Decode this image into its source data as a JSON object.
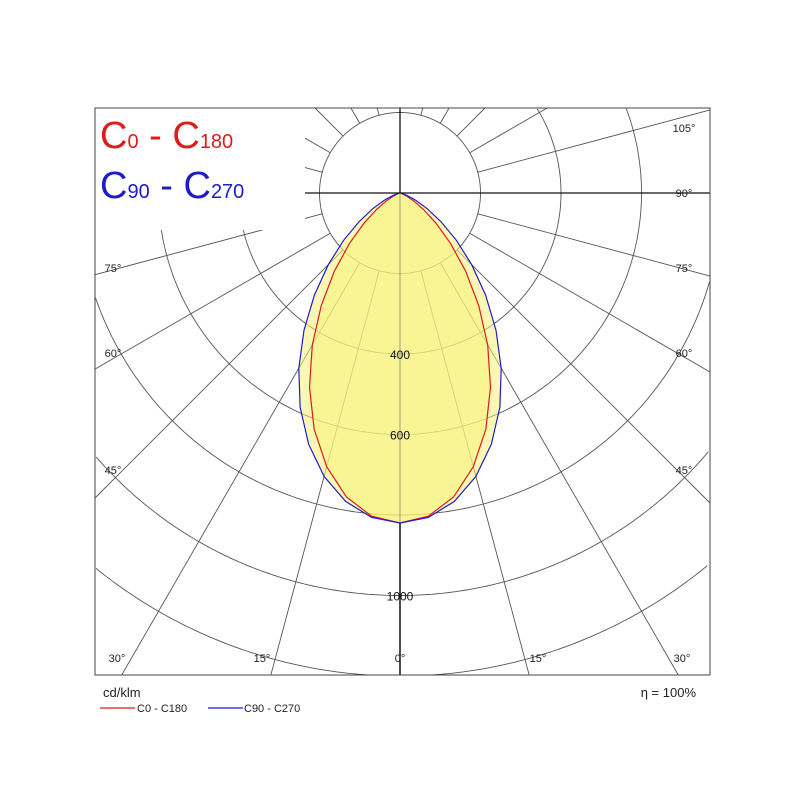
{
  "chart_data": {
    "type": "polar",
    "unit_label": "cd/klm",
    "efficiency_label": "η = 100%",
    "title_series": [
      {
        "main": "C",
        "sub": "0",
        "sep": " - ",
        "main2": "C",
        "sub2": "180",
        "color": "#dd1c1c"
      },
      {
        "main": "C",
        "sub": "90",
        "sep": " - ",
        "main2": "C",
        "sub2": "270",
        "color": "#1c1cc8"
      }
    ],
    "ring_values": [
      200,
      400,
      600,
      800,
      1000,
      1200
    ],
    "ring_labels": [
      {
        "value": 400,
        "text": "400"
      },
      {
        "value": 600,
        "text": "600"
      },
      {
        "value": 1000,
        "text": "1000"
      }
    ],
    "angle_labels_side": [
      "105°",
      "90°",
      "75°",
      "60°",
      "45°"
    ],
    "angle_labels_bottom": [
      "30°",
      "15°",
      "0°",
      "15°",
      "30°"
    ],
    "angles_deg": [
      0,
      5,
      10,
      15,
      20,
      25,
      30,
      35,
      40,
      45,
      50,
      55,
      60,
      65,
      70,
      75,
      80,
      85,
      90
    ],
    "series": [
      {
        "name": "C0 - C180",
        "color": "#dd1c1c",
        "values": [
          820,
          806,
          767,
          704,
          624,
          532,
          436,
          341,
          254,
          178,
          117,
          71,
          39,
          19,
          7,
          3,
          1,
          0,
          0
        ]
      },
      {
        "name": "C90 - C270",
        "color": "#1c1cc8",
        "values": [
          820,
          809,
          778,
          729,
          664,
          587,
          503,
          416,
          331,
          252,
          183,
          124,
          78,
          44,
          21,
          8,
          2,
          0,
          0
        ]
      }
    ],
    "fill_color": "#f8f27a",
    "grid": true,
    "legend_placement": "bottom-left"
  }
}
